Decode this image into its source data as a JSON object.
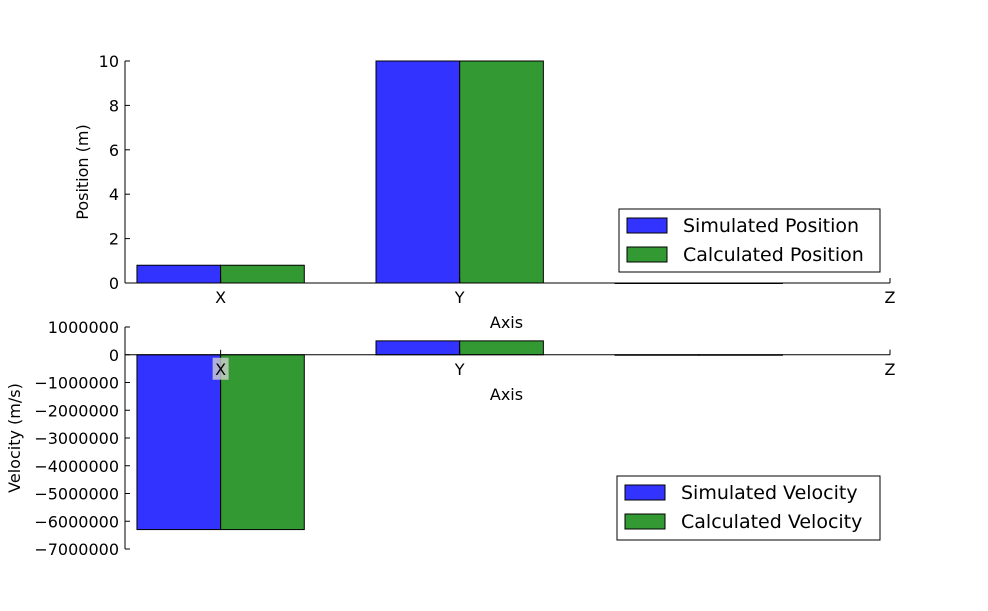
{
  "chart_data": [
    {
      "type": "bar",
      "categories": [
        "X",
        "Y",
        "Z"
      ],
      "series": [
        {
          "name": "Simulated Position",
          "color": "#3333ff",
          "values": [
            0.8,
            10.0,
            0
          ]
        },
        {
          "name": "Calculated Position",
          "color": "#339933",
          "values": [
            0.8,
            10.0,
            0
          ]
        }
      ],
      "xlabel": "Axis",
      "ylabel": "Position (m)",
      "ylim": [
        0,
        10
      ],
      "yticks": [
        0,
        2,
        4,
        6,
        8,
        10
      ],
      "legend": "lower-right",
      "grid": false
    },
    {
      "type": "bar",
      "categories": [
        "X",
        "Y",
        "Z"
      ],
      "series": [
        {
          "name": "Simulated Velocity",
          "color": "#3333ff",
          "values": [
            -6300000,
            500000,
            0
          ]
        },
        {
          "name": "Calculated Velocity",
          "color": "#339933",
          "values": [
            -6300000,
            500000,
            0
          ]
        }
      ],
      "xlabel": "Axis",
      "ylabel": "Velocity (m/s)",
      "ylim": [
        -7000000,
        1000000
      ],
      "yticks": [
        1000000,
        0,
        -1000000,
        -2000000,
        -3000000,
        -4000000,
        -5000000,
        -6000000,
        -7000000
      ],
      "legend": "lower-right",
      "grid": false
    }
  ]
}
